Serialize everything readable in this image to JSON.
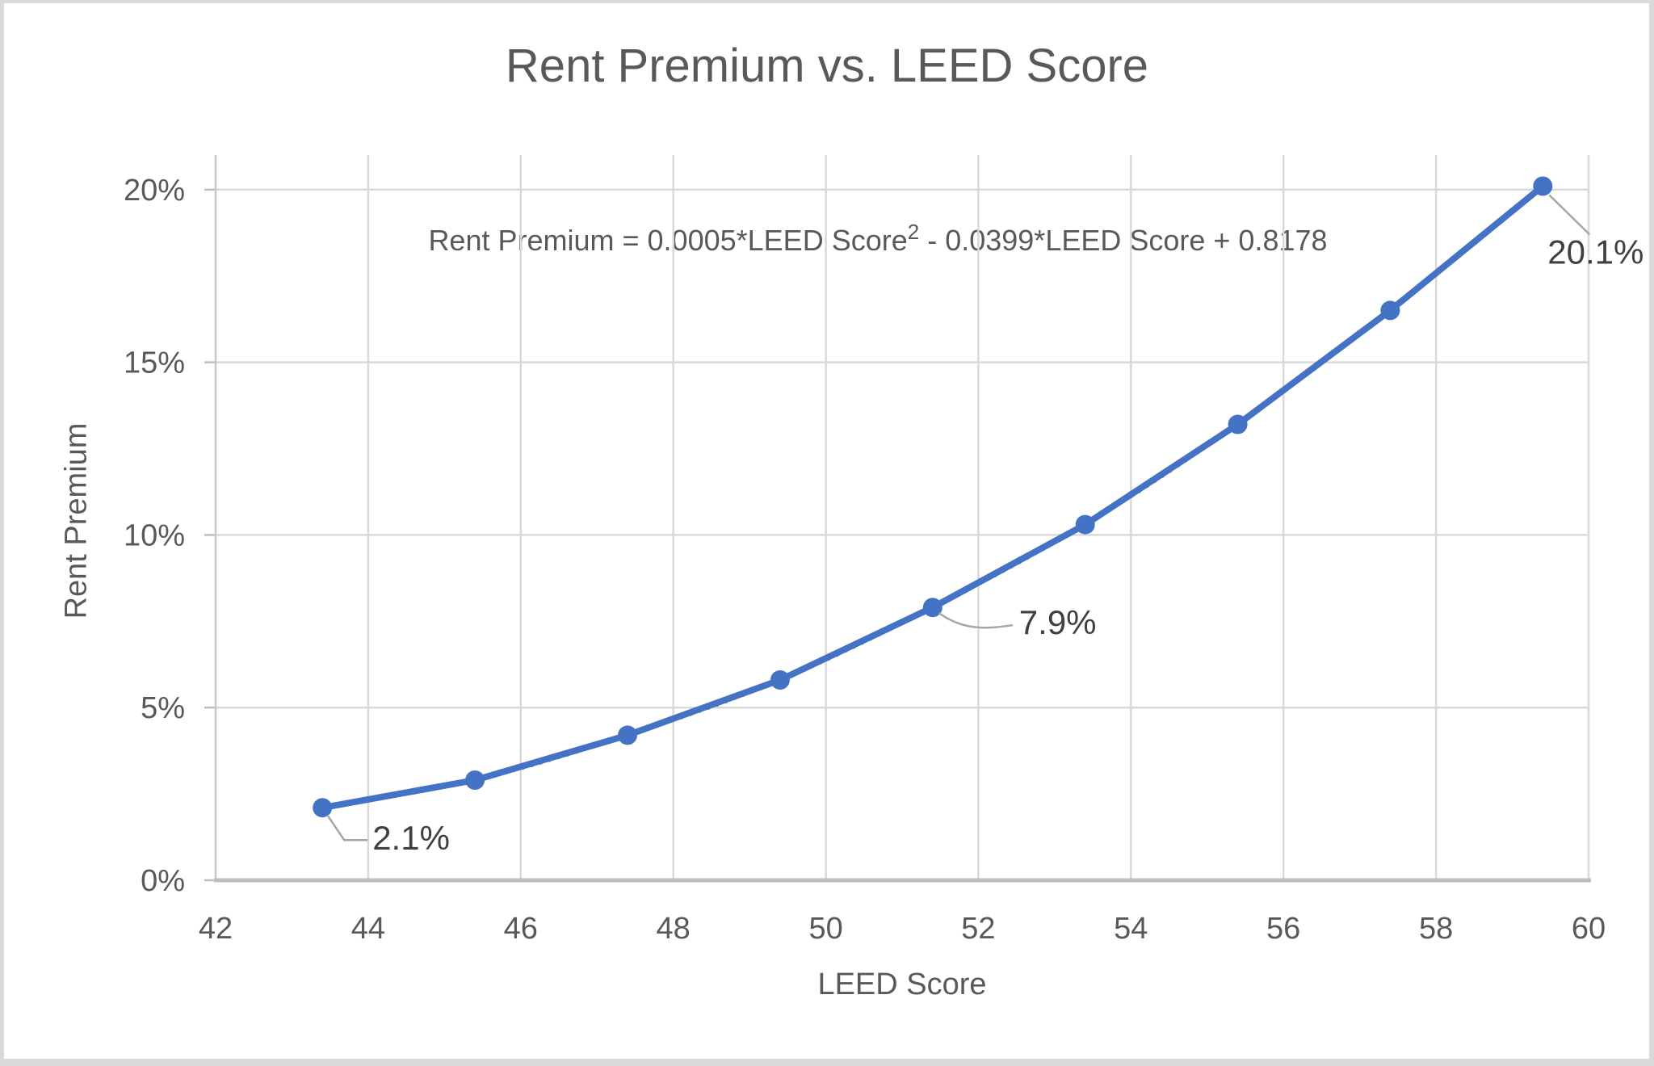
{
  "window": {
    "background": "#ffffff",
    "border_color": "#d9d9d9"
  },
  "chart": {
    "title": "Rent Premium vs. LEED Score",
    "equation": {
      "prefix": "Rent Premium = 0.0005*LEED Score",
      "superscript": "2",
      "suffix": " - 0.0399*LEED Score + 0.8178"
    }
  },
  "chart_data": {
    "type": "scatter",
    "title": "Rent Premium vs. LEED Score",
    "xlabel": "LEED Score",
    "ylabel": "Rent Premium",
    "x": [
      43.4,
      45.4,
      47.4,
      49.4,
      51.4,
      53.4,
      55.4,
      57.4,
      59.4
    ],
    "y_percent": [
      2.1,
      2.9,
      4.2,
      5.8,
      7.9,
      10.3,
      13.2,
      16.5,
      20.1
    ],
    "series_name": "Rent Premium",
    "data_labels": [
      {
        "point_index": 0,
        "text": "2.1%"
      },
      {
        "point_index": 4,
        "text": "7.9%"
      },
      {
        "point_index": 8,
        "text": "20.1%"
      }
    ],
    "trendline": {
      "style": "dotted",
      "equation_text": "Rent Premium = 0.0005*LEED Score^2 - 0.0399*LEED Score + 0.8178"
    },
    "x_ticks": [
      42,
      44,
      46,
      48,
      50,
      52,
      54,
      56,
      58,
      60
    ],
    "y_ticks_percent": [
      0,
      5,
      10,
      15,
      20
    ],
    "y_tick_labels": [
      "0%",
      "5%",
      "10%",
      "15%",
      "20%"
    ],
    "xlim": [
      42,
      60
    ],
    "ylim_percent": [
      0,
      21
    ],
    "grid": "both",
    "legend": "none",
    "colors": {
      "series": "#4472C4",
      "gridline": "#D9D9D9",
      "axis_line": "#BFBFBF",
      "y_axis_line": "#C9C9C9",
      "tick_label": "#595959",
      "title": "#595959",
      "axis_title": "#595959",
      "data_label": "#404040",
      "leader_line": "#A6A6A6"
    }
  }
}
